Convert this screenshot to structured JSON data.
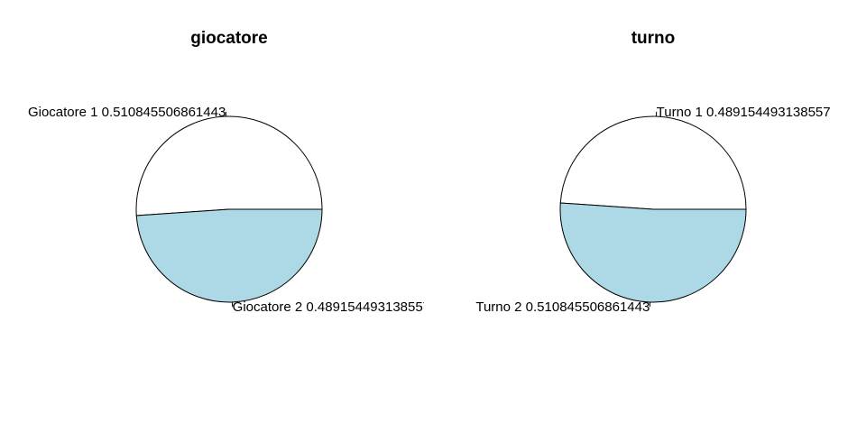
{
  "chart_data": [
    {
      "type": "pie",
      "title": "giocatore",
      "slices": [
        {
          "label": "Giocatore 1 0.510845506861443",
          "value": 0.510845506861443,
          "color": "#ffffff"
        },
        {
          "label": "Giocatore 2 0.489154493138557",
          "value": 0.489154493138557,
          "color": "#add8e6"
        }
      ]
    },
    {
      "type": "pie",
      "title": "turno",
      "slices": [
        {
          "label": "Turno 1 0.489154493138557",
          "value": 0.489154493138557,
          "color": "#ffffff"
        },
        {
          "label": "Turno 2 0.510845506861443",
          "value": 0.510845506861443,
          "color": "#add8e6"
        }
      ]
    }
  ]
}
